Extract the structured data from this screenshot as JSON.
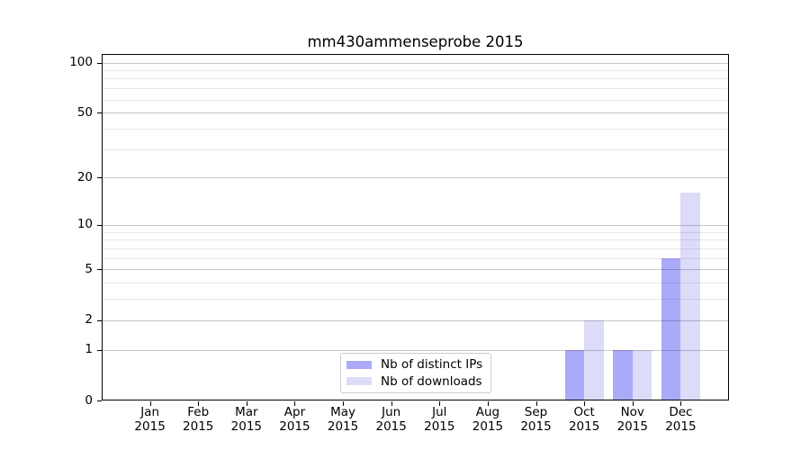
{
  "chart_data": {
    "type": "bar",
    "title": "mm430ammenseprobe 2015",
    "xlabel": "",
    "ylabel": "",
    "categories": [
      "Jan 2015",
      "Feb 2015",
      "Mar 2015",
      "Apr 2015",
      "May 2015",
      "Jun 2015",
      "Jul 2015",
      "Aug 2015",
      "Sep 2015",
      "Oct 2015",
      "Nov 2015",
      "Dec 2015"
    ],
    "x_tick_labels": [
      [
        "Jan",
        "2015"
      ],
      [
        "Feb",
        "2015"
      ],
      [
        "Mar",
        "2015"
      ],
      [
        "Apr",
        "2015"
      ],
      [
        "May",
        "2015"
      ],
      [
        "Jun",
        "2015"
      ],
      [
        "Jul",
        "2015"
      ],
      [
        "Aug",
        "2015"
      ],
      [
        "Sep",
        "2015"
      ],
      [
        "Oct",
        "2015"
      ],
      [
        "Nov",
        "2015"
      ],
      [
        "Dec",
        "2015"
      ]
    ],
    "series": [
      {
        "name": "Nb of distinct IPs",
        "color": "#aaaaf8",
        "values": [
          0,
          0,
          0,
          0,
          0,
          0,
          0,
          0,
          0,
          1,
          1,
          6
        ]
      },
      {
        "name": "Nb of downloads",
        "color": "#dcdcf9",
        "values": [
          0,
          0,
          0,
          0,
          0,
          0,
          0,
          0,
          0,
          2,
          1,
          16
        ]
      }
    ],
    "y_scale": "log1p",
    "y_ticks": [
      0,
      1,
      2,
      5,
      10,
      20,
      50,
      100
    ],
    "y_minor_gridlines": [
      3,
      4,
      6,
      7,
      8,
      9,
      30,
      40,
      60,
      70,
      80,
      90
    ],
    "ylim": [
      0,
      113
    ],
    "grid": true,
    "legend_position": "lower center"
  }
}
